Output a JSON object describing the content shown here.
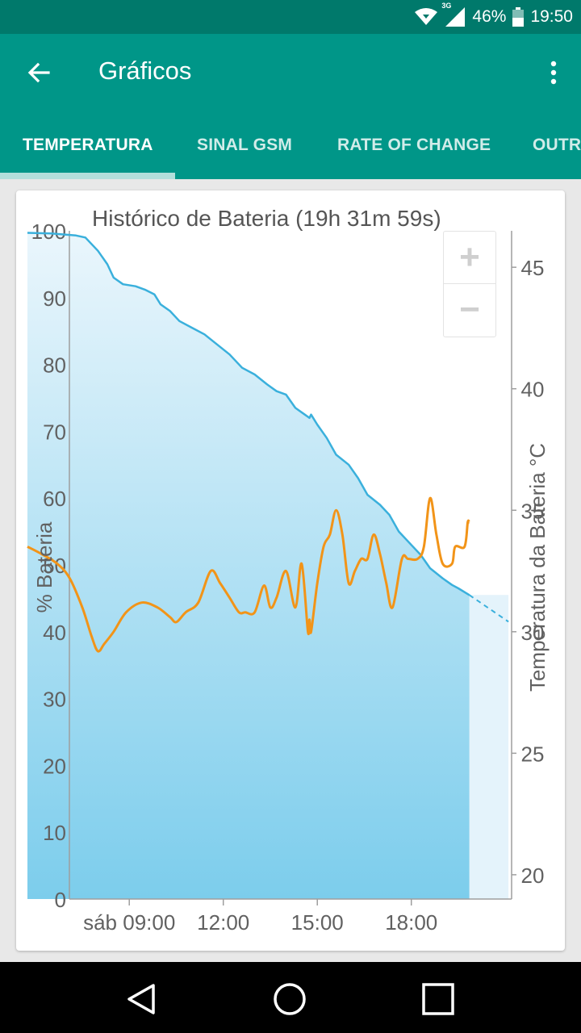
{
  "status_bar": {
    "network": "3G",
    "battery": "46%",
    "time": "19:50",
    "icons": [
      "wifi-icon",
      "signal-icon",
      "battery-icon"
    ]
  },
  "app_bar": {
    "title": "Gráficos",
    "back_icon": "arrow-back-icon",
    "menu_icon": "more-vert-icon"
  },
  "tabs": [
    {
      "label": "TEMPERATURA",
      "selected": true
    },
    {
      "label": "SINAL GSM",
      "selected": false
    },
    {
      "label": "RATE OF CHANGE",
      "selected": false
    },
    {
      "label": "OUTR",
      "selected": false
    }
  ],
  "zoom": {
    "in": "+",
    "out": "−"
  },
  "colors": {
    "primary": "#009688",
    "primary_dark": "#00796b",
    "battery_line": "#3ab0dc",
    "temperature_line": "#f29418"
  },
  "chart_data": {
    "type": "line",
    "title": "Histórico de Bateria (19h 31m 59s)",
    "ylabel": "% Bateria",
    "y2label": "Temperatura da Bateria °C",
    "xticks": [
      "sáb 09:00",
      "12:00",
      "15:00",
      "18:00"
    ],
    "yticks": [
      0,
      10,
      20,
      30,
      40,
      50,
      60,
      70,
      80,
      90,
      100
    ],
    "y2ticks": [
      20,
      25,
      30,
      35,
      40,
      45
    ],
    "ylim": [
      0,
      100
    ],
    "y2lim": [
      19,
      46.5
    ],
    "xlim": [
      5.75,
      21.2
    ],
    "series": [
      {
        "name": "% Bateria",
        "axis": "left",
        "filled": true,
        "x": [
          5.75,
          6.5,
          7.3,
          7.6,
          8.0,
          8.3,
          8.5,
          8.8,
          9.2,
          9.5,
          9.8,
          10.0,
          10.3,
          10.6,
          11.0,
          11.4,
          11.8,
          12.2,
          12.6,
          13.0,
          13.4,
          13.7,
          14.0,
          14.3,
          14.6,
          14.75,
          14.8,
          15.0,
          15.3,
          15.6,
          16.0,
          16.3,
          16.6,
          17.0,
          17.3,
          17.6,
          18.0,
          18.3,
          18.6,
          19.0,
          19.3,
          19.5,
          19.85
        ],
        "y": [
          99.7,
          99.6,
          99.3,
          99.0,
          97,
          95,
          93,
          92,
          91.7,
          91.2,
          90.5,
          89,
          88,
          86.5,
          85.5,
          84.5,
          83,
          81.5,
          79.5,
          78.5,
          77,
          76,
          75.5,
          73.5,
          72.5,
          72,
          72.5,
          71,
          69,
          66.5,
          65,
          63,
          60.5,
          59,
          57.5,
          55,
          53,
          51.5,
          49.5,
          48,
          47,
          46.5,
          45.5
        ],
        "projection": {
          "x": [
            19.85,
            21.1
          ],
          "y": [
            45.5,
            41.5
          ]
        }
      },
      {
        "name": "Temperatura da Bateria °C",
        "axis": "right",
        "x": [
          5.75,
          6.2,
          6.7,
          7.1,
          7.5,
          7.8,
          8.0,
          8.2,
          8.5,
          8.9,
          9.4,
          9.9,
          10.3,
          10.5,
          10.8,
          11.2,
          11.6,
          11.9,
          12.2,
          12.5,
          12.7,
          13.0,
          13.3,
          13.5,
          13.7,
          14.0,
          14.3,
          14.5,
          14.7,
          14.75,
          14.8,
          15.0,
          15.2,
          15.4,
          15.6,
          15.8,
          16.0,
          16.2,
          16.4,
          16.6,
          16.8,
          17.0,
          17.2,
          17.4,
          17.7,
          17.9,
          18.2,
          18.4,
          18.6,
          18.8,
          19.0,
          19.3,
          19.4,
          19.7,
          19.8,
          19.85
        ],
        "y": [
          33.5,
          33.2,
          32.8,
          32.2,
          31.0,
          29.8,
          29.2,
          29.5,
          30.0,
          30.8,
          31.2,
          31.0,
          30.6,
          30.4,
          30.8,
          31.2,
          32.5,
          32.0,
          31.4,
          30.8,
          30.8,
          30.8,
          31.9,
          31.0,
          31.4,
          32.5,
          31.0,
          32.8,
          30.0,
          30.5,
          30.0,
          32.0,
          33.5,
          34.0,
          35.0,
          34.0,
          32.0,
          32.5,
          33.0,
          33.0,
          34.0,
          33.2,
          32.0,
          31.0,
          33.0,
          33.0,
          33.0,
          33.5,
          35.5,
          34.0,
          32.8,
          32.8,
          33.5,
          33.5,
          34.5,
          34.5
        ]
      }
    ]
  }
}
